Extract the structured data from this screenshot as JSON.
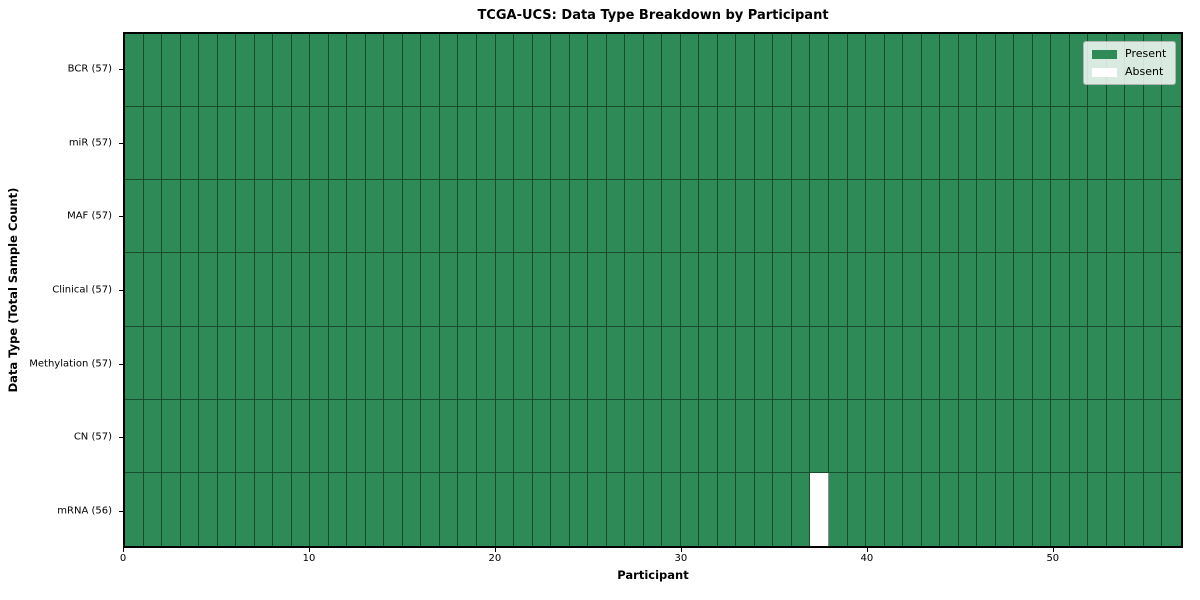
{
  "title": "TCGA-UCS: Data Type Breakdown by Participant",
  "xlabel": "Participant",
  "ylabel": "Data Type (Total Sample Count)",
  "legend": {
    "present_label": "Present",
    "absent_label": "Absent"
  },
  "chart_data": {
    "type": "heatmap",
    "title": "TCGA-UCS: Data Type Breakdown by Participant",
    "xlabel": "Participant",
    "ylabel": "Data Type (Total Sample Count)",
    "n_participants": 57,
    "x_range": [
      0,
      57
    ],
    "x_ticks": [
      0,
      10,
      20,
      30,
      40,
      50
    ],
    "rows": [
      {
        "label": "BCR (57)",
        "data_type": "BCR",
        "total": 57,
        "absent_participants": []
      },
      {
        "label": "miR (57)",
        "data_type": "miR",
        "total": 57,
        "absent_participants": []
      },
      {
        "label": "MAF (57)",
        "data_type": "MAF",
        "total": 57,
        "absent_participants": []
      },
      {
        "label": "Clinical (57)",
        "data_type": "Clinical",
        "total": 57,
        "absent_participants": []
      },
      {
        "label": "Methylation (57)",
        "data_type": "Methylation",
        "total": 57,
        "absent_participants": []
      },
      {
        "label": "CN (57)",
        "data_type": "CN",
        "total": 57,
        "absent_participants": []
      },
      {
        "label": "mRNA (56)",
        "data_type": "mRNA",
        "total": 56,
        "absent_participants": [
          37
        ]
      }
    ],
    "legend": [
      {
        "label": "Present",
        "color": "#2e8b57"
      },
      {
        "label": "Absent",
        "color": "#ffffff"
      }
    ],
    "colors": {
      "present": "#2e8b57",
      "absent": "#ffffff",
      "grid_line": "rgba(0,0,0,0.45)",
      "spine": "#000000",
      "figure_background": "#ffffff"
    },
    "grid": "cell-borders-on",
    "legend_position": "upper-right-inside"
  }
}
